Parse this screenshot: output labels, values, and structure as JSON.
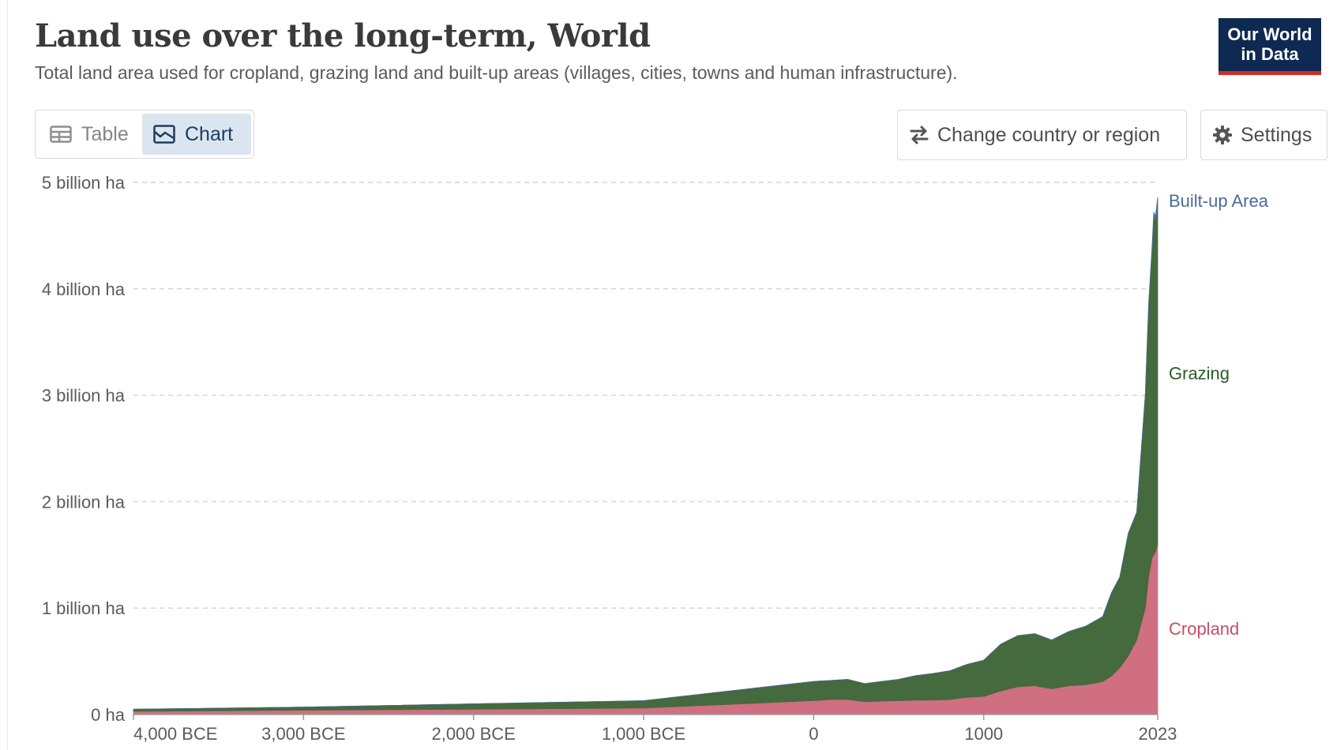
{
  "header": {
    "title": "Land use over the long-term, World",
    "subtitle": "Total land area used for cropland, grazing land and built-up areas (villages, cities, towns and human infrastructure)."
  },
  "logo": {
    "line1": "Our World",
    "line2": "in Data",
    "bg_color": "#0e2a52",
    "accent_color": "#d42b21"
  },
  "tabs": [
    {
      "label": "Table",
      "icon": "table-icon",
      "active": false
    },
    {
      "label": "Chart",
      "icon": "chart-icon",
      "active": true
    }
  ],
  "controls": {
    "change_country_label": "Change country or region",
    "change_country_icon": "swap-arrows-icon",
    "settings_label": "Settings",
    "settings_icon": "gear-icon"
  },
  "chart_data": {
    "type": "area",
    "stacked": true,
    "title": "Land use over the long-term, World",
    "yticks": [
      0,
      1,
      2,
      3,
      4,
      5
    ],
    "ytick_labels": [
      "0 ha",
      "1 billion ha",
      "2 billion ha",
      "3 billion ha",
      "4 billion ha",
      "5 billion ha"
    ],
    "ylim": [
      0,
      5
    ],
    "yunit": "billion ha",
    "xticks": [
      -4000,
      -3000,
      -2000,
      -1000,
      0,
      1000,
      2023
    ],
    "xtick_labels": [
      "4,000 BCE",
      "3,000 BCE",
      "2,000 BCE",
      "1,000 BCE",
      "0",
      "1000",
      "2023"
    ],
    "xlim": [
      -4000,
      2023
    ],
    "grid": true,
    "x": [
      -4000,
      -3000,
      -2000,
      -1000,
      0,
      100,
      200,
      300,
      400,
      500,
      600,
      700,
      800,
      900,
      1000,
      1100,
      1200,
      1300,
      1400,
      1500,
      1600,
      1700,
      1750,
      1800,
      1850,
      1900,
      1950,
      1970,
      1990,
      2000,
      2010,
      2023
    ],
    "series": [
      {
        "name": "Cropland",
        "color": "#cf6f80",
        "label_color": "#c54f64",
        "values": [
          0.03,
          0.04,
          0.05,
          0.06,
          0.13,
          0.14,
          0.14,
          0.12,
          0.125,
          0.13,
          0.135,
          0.135,
          0.14,
          0.16,
          0.17,
          0.22,
          0.26,
          0.27,
          0.24,
          0.27,
          0.28,
          0.31,
          0.36,
          0.44,
          0.55,
          0.7,
          1.0,
          1.3,
          1.47,
          1.5,
          1.53,
          1.6
        ]
      },
      {
        "name": "Grazing",
        "color": "#446a3d",
        "label_color": "#2a5a26",
        "values": [
          0.02,
          0.03,
          0.05,
          0.07,
          0.18,
          0.18,
          0.19,
          0.17,
          0.185,
          0.2,
          0.23,
          0.25,
          0.27,
          0.31,
          0.34,
          0.44,
          0.48,
          0.49,
          0.46,
          0.51,
          0.55,
          0.61,
          0.78,
          0.85,
          1.15,
          1.2,
          2.0,
          2.55,
          2.9,
          3.18,
          3.1,
          3.2
        ]
      },
      {
        "name": "Built-up Area",
        "color": "#4c6a9c",
        "label_color": "#4c6a9c",
        "values": [
          0,
          0,
          0,
          0,
          0,
          0,
          0,
          0,
          0,
          0,
          0,
          0,
          0,
          0,
          0,
          0,
          0,
          0,
          0,
          0,
          0,
          0,
          0,
          0,
          0.001,
          0.003,
          0.01,
          0.02,
          0.03,
          0.04,
          0.05,
          0.06
        ]
      }
    ]
  }
}
